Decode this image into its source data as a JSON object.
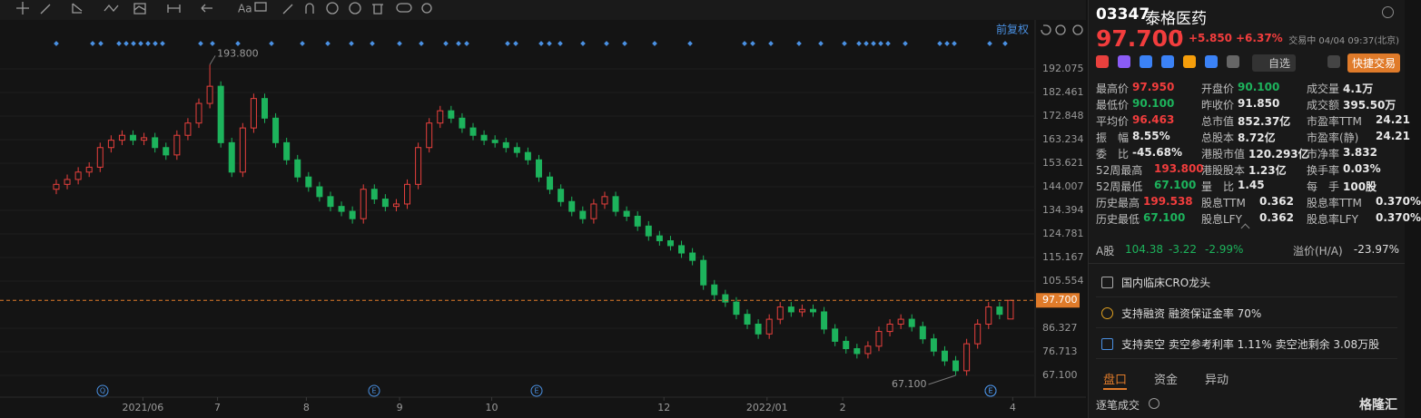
{
  "toolbar": {
    "text_tool": "Aa"
  },
  "chart_data": {
    "type": "candlestick",
    "adjust_label": "前复权",
    "up_color": "#e8403d",
    "down_color": "#1db35c",
    "open": [
      143,
      145,
      147,
      150,
      152,
      160,
      163,
      165,
      163,
      164,
      160,
      157,
      165,
      170,
      178,
      185,
      162,
      150,
      168,
      180,
      172,
      162,
      155,
      148,
      144,
      140,
      136,
      134,
      131,
      143,
      139,
      136,
      137,
      145,
      160,
      170,
      175,
      172,
      168,
      165,
      163,
      162,
      160,
      158,
      155,
      148,
      143,
      138,
      134,
      131,
      137,
      140,
      134,
      132,
      128,
      124,
      122,
      120,
      117,
      114,
      104,
      100,
      97,
      92,
      88,
      84,
      90,
      95,
      93,
      94,
      93,
      86,
      81,
      78,
      76,
      79,
      85,
      88,
      90,
      87,
      82,
      77,
      73,
      69,
      80,
      88,
      95,
      90.1
    ],
    "high": [
      147,
      149,
      152,
      154,
      162,
      165,
      167,
      167,
      166,
      166,
      162,
      167,
      172,
      180,
      193.8,
      187,
      164,
      170,
      182,
      182,
      174,
      164,
      157,
      150,
      146,
      142,
      138,
      136,
      145,
      145,
      141,
      139,
      147,
      162,
      172,
      177,
      177,
      174,
      170,
      167,
      165,
      164,
      162,
      160,
      157,
      150,
      145,
      140,
      136,
      139,
      142,
      142,
      136,
      134,
      130,
      126,
      124,
      122,
      119,
      116,
      106,
      102,
      99,
      94,
      90,
      92,
      97,
      97,
      96,
      96,
      95,
      88,
      83,
      80,
      81,
      87,
      90,
      92,
      92,
      89,
      84,
      79,
      75,
      82,
      90,
      97,
      97,
      97.95
    ],
    "low": [
      141,
      143,
      145,
      148,
      150,
      158,
      161,
      161,
      161,
      158,
      155,
      155,
      163,
      168,
      176,
      160,
      148,
      148,
      166,
      170,
      160,
      153,
      146,
      142,
      138,
      134,
      132,
      129,
      129,
      137,
      134,
      134,
      135,
      143,
      158,
      168,
      170,
      166,
      163,
      161,
      160,
      158,
      156,
      153,
      146,
      141,
      136,
      132,
      129,
      129,
      135,
      132,
      130,
      126,
      122,
      120,
      118,
      115,
      112,
      102,
      98,
      95,
      90,
      86,
      82,
      82,
      88,
      91,
      91,
      91,
      84,
      79,
      76,
      74,
      74,
      77,
      83,
      86,
      85,
      80,
      75,
      71,
      67.1,
      67,
      78,
      86,
      90,
      90.1
    ],
    "close": [
      145,
      147,
      150,
      152,
      160,
      163,
      165,
      163,
      164,
      160,
      157,
      165,
      170,
      178,
      185,
      162,
      150,
      168,
      180,
      172,
      162,
      155,
      148,
      144,
      140,
      136,
      134,
      131,
      143,
      139,
      136,
      137,
      145,
      160,
      170,
      175,
      172,
      168,
      165,
      163,
      162,
      160,
      158,
      155,
      148,
      143,
      138,
      134,
      131,
      137,
      140,
      134,
      132,
      128,
      124,
      122,
      120,
      117,
      114,
      104,
      100,
      97,
      92,
      88,
      84,
      90,
      95,
      93,
      94,
      93,
      86,
      81,
      78,
      76,
      79,
      85,
      88,
      90,
      87,
      82,
      77,
      73,
      69,
      80,
      88,
      95,
      92,
      97.7
    ],
    "xlim": [
      -5.13,
      89.24
    ],
    "xticks": [
      {
        "value": 7.9,
        "label": "2021/06"
      },
      {
        "value": 14.7,
        "label": "7"
      },
      {
        "value": 22.8,
        "label": "8"
      },
      {
        "value": 31.3,
        "label": "9"
      },
      {
        "value": 39.7,
        "label": "10"
      },
      {
        "value": 55.4,
        "label": "12"
      },
      {
        "value": 64.8,
        "label": "2022/01"
      },
      {
        "value": 71.7,
        "label": "2"
      },
      {
        "value": 87.2,
        "label": "4"
      }
    ],
    "ylim": [
      58.23,
      212.04
    ],
    "yticks": [
      192.075,
      182.461,
      172.848,
      163.234,
      153.621,
      144.007,
      134.394,
      124.781,
      115.167,
      105.554,
      86.327,
      76.713,
      {
        "value": 67.1,
        "label": "67.100"
      }
    ],
    "last_price": {
      "value": 97.7,
      "label": "97.700"
    },
    "annotations": [
      {
        "value": 193.8,
        "label": "193.800"
      },
      {
        "value": 67.1,
        "label": "67.100"
      }
    ],
    "event_icons": [
      "Q",
      "E",
      "E",
      "E",
      "E"
    ]
  },
  "panel": {
    "code": "03347",
    "name": "泰格医药",
    "price": "97.700",
    "change": "+5.850",
    "change_pct": "+6.37%",
    "status": "交易中 04/04 09:37(北京)",
    "watch": "自选",
    "quick_trade": "快捷交易",
    "stats": [
      [
        {
          "label": "最高价",
          "value": "97.950",
          "color": "#f23d3d"
        },
        {
          "label": "开盘价",
          "value": "90.100",
          "color": "#1db35c"
        },
        {
          "label": "成交量",
          "value": "4.1万"
        }
      ],
      [
        {
          "label": "最低价",
          "value": "90.100",
          "color": "#1db35c"
        },
        {
          "label": "昨收价",
          "value": "91.850"
        },
        {
          "label": "成交额",
          "value": "395.50万"
        }
      ],
      [
        {
          "label": "平均价",
          "value": "96.463",
          "color": "#f23d3d"
        },
        {
          "label": "总市值",
          "value": "852.37亿"
        },
        {
          "label": "市盈率TTM",
          "value": "24.21"
        }
      ],
      [
        {
          "label": "振　幅",
          "value": "8.55%"
        },
        {
          "label": "总股本",
          "value": "8.72亿"
        },
        {
          "label": "市盈率(静)",
          "value": "24.21"
        }
      ],
      [
        {
          "label": "委　比",
          "value": "-45.68%"
        },
        {
          "label": "港股市值",
          "value": "120.293亿"
        },
        {
          "label": "市净率",
          "value": "3.832"
        }
      ],
      [
        {
          "label": "52周最高",
          "value": "193.800",
          "color": "#f23d3d"
        },
        {
          "label": "港股股本",
          "value": "1.23亿"
        },
        {
          "label": "换手率",
          "value": "0.03%"
        }
      ],
      [
        {
          "label": "52周最低",
          "value": "67.100",
          "color": "#1db35c"
        },
        {
          "label": "量　比",
          "value": "1.45"
        },
        {
          "label": "每　手",
          "value": "100股"
        }
      ],
      [
        {
          "label": "历史最高",
          "value": "199.538",
          "color": "#f23d3d"
        },
        {
          "label": "股息TTM",
          "value": "0.362"
        },
        {
          "label": "股息率TTM",
          "value": "0.370%"
        }
      ],
      [
        {
          "label": "历史最低",
          "value": "67.100",
          "color": "#1db35c"
        },
        {
          "label": "股息LFY",
          "value": "0.362"
        },
        {
          "label": "股息率LFY",
          "value": "0.370%"
        }
      ]
    ],
    "a_share": {
      "label": "A股",
      "price": "104.38",
      "change": "-3.22",
      "change_pct": "-2.99%",
      "premium_label": "溢价(H/A)",
      "premium": "-23.97%"
    },
    "features": [
      "国内临床CRO龙头",
      "支持融资 融资保证金率 70%",
      "支持卖空 卖空参考利率 1.11% 卖空池剩余 3.08万股"
    ],
    "tabs": [
      "盘口",
      "资金",
      "异动"
    ],
    "trades": "逐笔成交",
    "logo": "格隆汇"
  }
}
